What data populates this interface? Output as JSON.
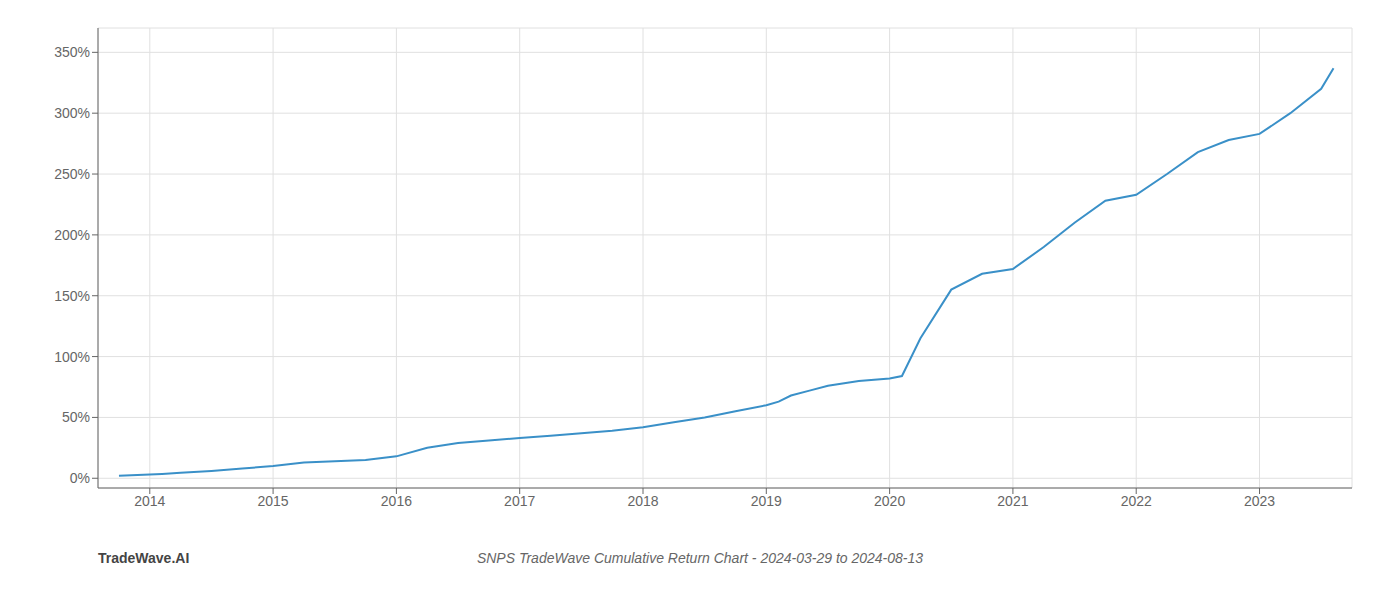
{
  "chart_data": {
    "type": "line",
    "title": "SNPS TradeWave Cumulative Return Chart - 2024-03-29 to 2024-08-13",
    "annotations": [
      "TradeWave.AI"
    ],
    "x": [
      2013.75,
      2014.0,
      2014.1,
      2014.25,
      2014.5,
      2014.75,
      2015.0,
      2015.25,
      2015.5,
      2015.75,
      2016.0,
      2016.25,
      2016.5,
      2016.75,
      2017.0,
      2017.25,
      2017.5,
      2017.75,
      2018.0,
      2018.25,
      2018.5,
      2018.75,
      2019.0,
      2019.1,
      2019.2,
      2019.35,
      2019.5,
      2019.75,
      2020.0,
      2020.1,
      2020.25,
      2020.5,
      2020.75,
      2021.0,
      2021.25,
      2021.5,
      2021.75,
      2022.0,
      2022.25,
      2022.5,
      2022.75,
      2023.0,
      2023.25,
      2023.5,
      2023.6
    ],
    "values": [
      2.0,
      3.0,
      3.5,
      4.5,
      6.0,
      8.0,
      10.0,
      13.0,
      14.0,
      15.0,
      18.0,
      25.0,
      29.0,
      31.0,
      33.0,
      35.0,
      37.0,
      39.0,
      42.0,
      46.0,
      50.0,
      55.0,
      60.0,
      63.0,
      68.0,
      72.0,
      76.0,
      80.0,
      82.0,
      84.0,
      115.0,
      155.0,
      168.0,
      172.0,
      190.0,
      210.0,
      228.0,
      233.0,
      250.0,
      268.0,
      278.0,
      283.0,
      300.0,
      320.0,
      337.0
    ],
    "color": "#3a90c8",
    "xlim": [
      2013.58,
      2023.75
    ],
    "xticks": [
      2014,
      2015,
      2016,
      2017,
      2018,
      2019,
      2020,
      2021,
      2022,
      2023
    ],
    "ylim": [
      -8,
      370
    ],
    "yticks": [
      {
        "value": 0,
        "label": "0%"
      },
      {
        "value": 50,
        "label": "50%"
      },
      {
        "value": 100,
        "label": "100%"
      },
      {
        "value": 150,
        "label": "150%"
      },
      {
        "value": 200,
        "label": "200%"
      },
      {
        "value": 250,
        "label": "250%"
      },
      {
        "value": 300,
        "label": "300%"
      },
      {
        "value": 350,
        "label": "350%"
      }
    ],
    "grid": true
  }
}
